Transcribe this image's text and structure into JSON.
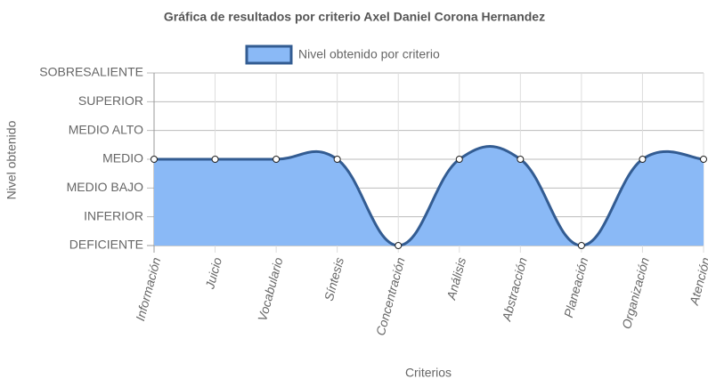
{
  "chart_data": {
    "type": "line",
    "title": "Gráfica de resultados por criterio Axel Daniel Corona Hernandez",
    "x_label": "Criterios",
    "y_label": "Nivel obtenido",
    "categories": [
      "Información",
      "Juicio",
      "Vocabulario",
      "Síntesis",
      "Concentración",
      "Análisis",
      "Abstracción",
      "Planeación",
      "Organización",
      "Atención"
    ],
    "series": [
      {
        "name": "Nivel obtenido por criterio",
        "color": "#335c92",
        "fill_color": "#8ab9f6",
        "values": [
          3,
          3,
          3,
          3,
          0,
          3,
          3,
          0,
          3,
          3
        ]
      }
    ],
    "ylim": [
      0,
      6
    ],
    "yticks": [
      {
        "value": 0,
        "label": "DEFICIENTE"
      },
      {
        "value": 1,
        "label": "INFERIOR"
      },
      {
        "value": 2,
        "label": "MEDIO BAJO"
      },
      {
        "value": 3,
        "label": "MEDIO"
      },
      {
        "value": 4,
        "label": "MEDIO ALTO"
      },
      {
        "value": 5,
        "label": "SUPERIOR"
      },
      {
        "value": 6,
        "label": "SOBRESALIENTE"
      }
    ],
    "grid": true,
    "fill": true,
    "legend": "top"
  }
}
